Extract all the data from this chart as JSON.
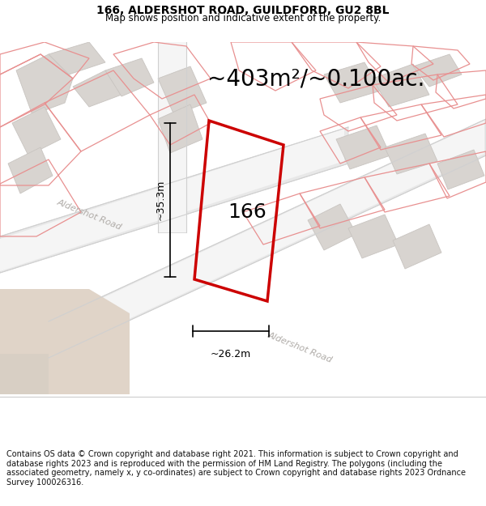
{
  "title_line1": "166, ALDERSHOT ROAD, GUILDFORD, GU2 8BL",
  "title_line2": "Map shows position and indicative extent of the property.",
  "area_text": "~403m²/~0.100ac.",
  "label_166": "166",
  "dim_height": "~35.3m",
  "dim_width": "~26.2m",
  "road_label1": "Aldershot Road",
  "road_label2": "Aldershot Road",
  "copyright_text": "Contains OS data © Crown copyright and database right 2021. This information is subject to Crown copyright and database rights 2023 and is reproduced with the permission of HM Land Registry. The polygons (including the associated geometry, namely x, y co-ordinates) are subject to Crown copyright and database rights 2023 Ordnance Survey 100026316.",
  "map_bg": "#ffffff",
  "road_fill": "#e8e8e8",
  "road_edge": "#d0d0d0",
  "building_fill": "#d8d4d0",
  "building_edge": "#c8c4c0",
  "parcel_line": "#e89090",
  "parcel_line2": "#f0a0a0",
  "sand_fill": "#e0d4c8",
  "plot_color": "#cc0000",
  "dim_color": "#000000",
  "text_color": "#000000",
  "road_text_color": "#b0aca8",
  "title_color": "#000000",
  "footer_bg": "#ffffff",
  "sep_color": "#cccccc",
  "figsize": [
    6.0,
    6.25
  ],
  "dpi": 100,
  "title_fontsize": 10,
  "subtitle_fontsize": 8.5,
  "area_fontsize": 20,
  "label_fontsize": 18,
  "dim_fontsize": 9,
  "road_fontsize": 8,
  "footer_fontsize": 7
}
